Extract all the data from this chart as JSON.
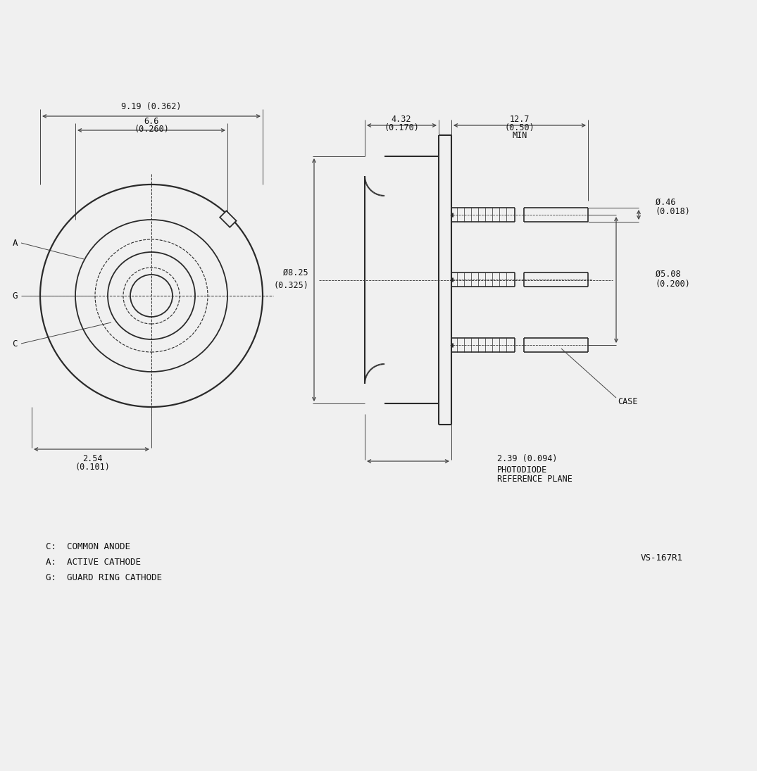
{
  "bg_color": "#f0f0f0",
  "line_color": "#2a2a2a",
  "dim_color": "#444444",
  "text_color": "#111111",
  "font_size": 8.5,
  "annotations": {
    "dim_919": "9.19 (0.362)",
    "dim_66_1": "6.6",
    "dim_66_2": "(0.260)",
    "dim_254_1": "2.54",
    "dim_254_2": "(0.101)",
    "dim_432_1": "4.32",
    "dim_432_2": "(0.170)",
    "dim_127_1": "12.7",
    "dim_127_2": "(0.50)",
    "dim_127_3": "MIN",
    "dim_825_1": "Ø8.25",
    "dim_825_2": "(0.325)",
    "dim_046_1": "Ø.46",
    "dim_046_2": "(0.018)",
    "dim_508_1": "Ø5.08",
    "dim_508_2": "(0.200)",
    "dim_239": "2.39 (0.094)",
    "photodiode_ref_1": "PHOTODIODE",
    "photodiode_ref_2": "REFERENCE PLANE",
    "case_label": "CASE",
    "label_c": "C",
    "label_a": "A",
    "label_g": "G",
    "legend_c": "C:  COMMON ANODE",
    "legend_a": "A:  ACTIVE CATHODE",
    "legend_g": "G:  GUARD RING CATHODE",
    "part_num": "VS-167R1"
  }
}
